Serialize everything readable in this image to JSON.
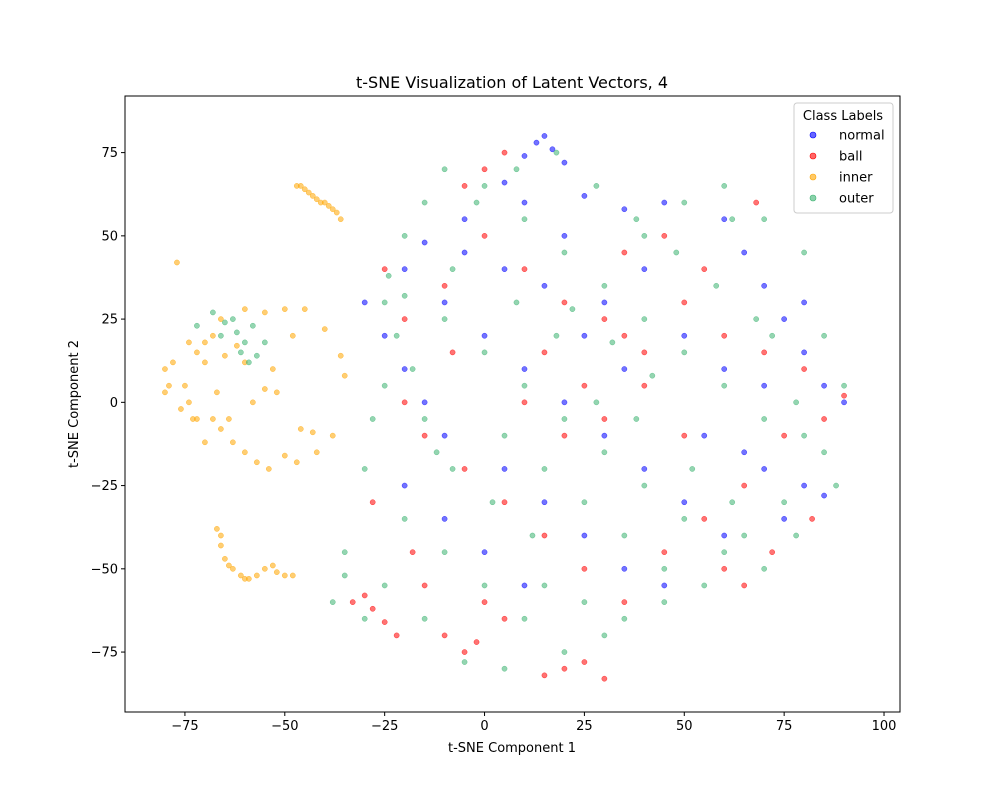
{
  "chart_data": {
    "type": "scatter",
    "title": "t-SNE Visualization of Latent Vectors, 4",
    "xlabel": "t-SNE Component 1",
    "ylabel": "t-SNE Component 2",
    "xlim": [
      -90,
      104
    ],
    "ylim": [
      -93,
      92
    ],
    "xticks": [
      -75,
      -50,
      -25,
      0,
      25,
      50,
      75,
      100
    ],
    "yticks": [
      -75,
      -50,
      -25,
      0,
      25,
      50,
      75
    ],
    "grid": false,
    "legend": {
      "title": "Class Labels",
      "placement": "top-right",
      "entries": [
        "normal",
        "ball",
        "inner",
        "outer"
      ]
    },
    "colors": {
      "normal": "#0000ff",
      "ball": "#ff0000",
      "inner": "#ffa500",
      "outer": "#3cb371"
    },
    "series": [
      {
        "name": "normal",
        "points": [
          [
            15,
            80
          ],
          [
            13,
            78
          ],
          [
            17,
            76
          ],
          [
            10,
            74
          ],
          [
            20,
            72
          ],
          [
            5,
            66
          ],
          [
            25,
            62
          ],
          [
            35,
            58
          ],
          [
            -5,
            55
          ],
          [
            -15,
            48
          ],
          [
            -20,
            40
          ],
          [
            60,
            55
          ],
          [
            65,
            45
          ],
          [
            70,
            35
          ],
          [
            75,
            25
          ],
          [
            80,
            15
          ],
          [
            85,
            5
          ],
          [
            90,
            0
          ],
          [
            -10,
            30
          ],
          [
            0,
            20
          ],
          [
            10,
            10
          ],
          [
            20,
            0
          ],
          [
            30,
            -10
          ],
          [
            40,
            -20
          ],
          [
            50,
            -30
          ],
          [
            60,
            -40
          ],
          [
            70,
            -20
          ],
          [
            80,
            -25
          ],
          [
            85,
            -28
          ],
          [
            75,
            -35
          ],
          [
            -25,
            20
          ],
          [
            -20,
            10
          ],
          [
            -15,
            0
          ],
          [
            -10,
            -10
          ],
          [
            5,
            -20
          ],
          [
            15,
            -30
          ],
          [
            25,
            -40
          ],
          [
            35,
            -50
          ],
          [
            45,
            -55
          ],
          [
            10,
            -55
          ],
          [
            0,
            -45
          ],
          [
            -10,
            -35
          ],
          [
            -20,
            -25
          ],
          [
            30,
            30
          ],
          [
            40,
            40
          ],
          [
            50,
            20
          ],
          [
            20,
            50
          ],
          [
            10,
            60
          ],
          [
            -5,
            45
          ],
          [
            45,
            60
          ],
          [
            55,
            -10
          ],
          [
            65,
            -15
          ],
          [
            35,
            10
          ],
          [
            25,
            20
          ],
          [
            15,
            35
          ],
          [
            5,
            40
          ],
          [
            -30,
            30
          ],
          [
            60,
            10
          ],
          [
            70,
            5
          ],
          [
            80,
            30
          ]
        ]
      },
      {
        "name": "ball",
        "points": [
          [
            -30,
            -58
          ],
          [
            -28,
            -62
          ],
          [
            -25,
            -66
          ],
          [
            -33,
            -60
          ],
          [
            -22,
            -70
          ],
          [
            -5,
            -75
          ],
          [
            -10,
            -70
          ],
          [
            -2,
            -72
          ],
          [
            15,
            -82
          ],
          [
            20,
            -80
          ],
          [
            25,
            -78
          ],
          [
            30,
            -83
          ],
          [
            0,
            -60
          ],
          [
            5,
            -65
          ],
          [
            -15,
            -55
          ],
          [
            30,
            25
          ],
          [
            35,
            20
          ],
          [
            40,
            15
          ],
          [
            20,
            30
          ],
          [
            10,
            40
          ],
          [
            -10,
            35
          ],
          [
            -20,
            25
          ],
          [
            -25,
            40
          ],
          [
            0,
            50
          ],
          [
            50,
            30
          ],
          [
            60,
            20
          ],
          [
            70,
            15
          ],
          [
            80,
            10
          ],
          [
            85,
            -5
          ],
          [
            75,
            -10
          ],
          [
            65,
            -25
          ],
          [
            55,
            -35
          ],
          [
            45,
            -45
          ],
          [
            35,
            -60
          ],
          [
            25,
            -50
          ],
          [
            15,
            -40
          ],
          [
            5,
            -30
          ],
          [
            -5,
            -20
          ],
          [
            -15,
            -10
          ],
          [
            -20,
            0
          ],
          [
            10,
            0
          ],
          [
            20,
            -10
          ],
          [
            30,
            -5
          ],
          [
            40,
            5
          ],
          [
            50,
            -10
          ],
          [
            60,
            -50
          ],
          [
            65,
            -55
          ],
          [
            72,
            -45
          ],
          [
            -28,
            -30
          ],
          [
            -18,
            -45
          ],
          [
            5,
            75
          ],
          [
            0,
            70
          ],
          [
            -5,
            65
          ],
          [
            35,
            45
          ],
          [
            45,
            50
          ],
          [
            55,
            40
          ],
          [
            68,
            60
          ],
          [
            25,
            5
          ],
          [
            15,
            15
          ],
          [
            -8,
            15
          ],
          [
            90,
            2
          ],
          [
            82,
            -35
          ]
        ]
      },
      {
        "name": "inner",
        "points": [
          [
            -47,
            65
          ],
          [
            -45,
            64
          ],
          [
            -43,
            62
          ],
          [
            -41,
            60
          ],
          [
            -39,
            59
          ],
          [
            -37,
            57
          ],
          [
            -36,
            55
          ],
          [
            -44,
            63
          ],
          [
            -42,
            61
          ],
          [
            -38,
            58
          ],
          [
            -46,
            65
          ],
          [
            -40,
            60
          ],
          [
            -67,
            -38
          ],
          [
            -66,
            -43
          ],
          [
            -65,
            -47
          ],
          [
            -63,
            -50
          ],
          [
            -61,
            -52
          ],
          [
            -59,
            -53
          ],
          [
            -57,
            -52
          ],
          [
            -66,
            -40
          ],
          [
            -64,
            -49
          ],
          [
            -60,
            -53
          ],
          [
            -55,
            -50
          ],
          [
            -52,
            -51
          ],
          [
            -50,
            -52
          ],
          [
            -48,
            -52
          ],
          [
            -53,
            -49
          ],
          [
            -77,
            42
          ],
          [
            -72,
            15
          ],
          [
            -70,
            18
          ],
          [
            -68,
            20
          ],
          [
            -66,
            25
          ],
          [
            -60,
            28
          ],
          [
            -55,
            27
          ],
          [
            -50,
            28
          ],
          [
            -45,
            28
          ],
          [
            -40,
            22
          ],
          [
            -36,
            14
          ],
          [
            -35,
            8
          ],
          [
            -38,
            -10
          ],
          [
            -42,
            -15
          ],
          [
            -47,
            -18
          ],
          [
            -50,
            -16
          ],
          [
            -54,
            -20
          ],
          [
            -57,
            -18
          ],
          [
            -60,
            -15
          ],
          [
            -63,
            -12
          ],
          [
            -66,
            -8
          ],
          [
            -68,
            -5
          ],
          [
            -70,
            -12
          ],
          [
            -72,
            -5
          ],
          [
            -74,
            0
          ],
          [
            -75,
            5
          ],
          [
            -78,
            12
          ],
          [
            -79,
            5
          ],
          [
            -80,
            10
          ],
          [
            -80,
            3
          ],
          [
            -76,
            -2
          ],
          [
            -73,
            -5
          ],
          [
            -67,
            3
          ],
          [
            -64,
            -5
          ],
          [
            -62,
            17
          ],
          [
            -58,
            0
          ],
          [
            -55,
            4
          ],
          [
            -52,
            3
          ],
          [
            -46,
            -8
          ],
          [
            -43,
            -9
          ],
          [
            -60,
            12
          ],
          [
            -65,
            14
          ],
          [
            -70,
            12
          ],
          [
            -74,
            18
          ],
          [
            -48,
            20
          ],
          [
            -53,
            10
          ]
        ]
      },
      {
        "name": "outer",
        "points": [
          [
            -65,
            24
          ],
          [
            -62,
            21
          ],
          [
            -60,
            18
          ],
          [
            -58,
            23
          ],
          [
            -63,
            25
          ],
          [
            -66,
            20
          ],
          [
            -61,
            15
          ],
          [
            -59,
            12
          ],
          [
            -57,
            14
          ],
          [
            -68,
            27
          ],
          [
            -72,
            23
          ],
          [
            -55,
            18
          ],
          [
            -24,
            38
          ],
          [
            -20,
            32
          ],
          [
            -10,
            25
          ],
          [
            0,
            15
          ],
          [
            10,
            5
          ],
          [
            20,
            -5
          ],
          [
            30,
            -15
          ],
          [
            40,
            -25
          ],
          [
            50,
            -35
          ],
          [
            60,
            -45
          ],
          [
            70,
            -50
          ],
          [
            -30,
            -20
          ],
          [
            -20,
            -35
          ],
          [
            -10,
            -45
          ],
          [
            0,
            -55
          ],
          [
            10,
            -65
          ],
          [
            20,
            -75
          ],
          [
            30,
            -70
          ],
          [
            -35,
            -45
          ],
          [
            -25,
            -55
          ],
          [
            -15,
            -65
          ],
          [
            -5,
            -78
          ],
          [
            5,
            -80
          ],
          [
            40,
            50
          ],
          [
            50,
            60
          ],
          [
            60,
            65
          ],
          [
            70,
            55
          ],
          [
            80,
            45
          ],
          [
            85,
            20
          ],
          [
            90,
            5
          ],
          [
            80,
            -10
          ],
          [
            70,
            -5
          ],
          [
            60,
            5
          ],
          [
            50,
            15
          ],
          [
            40,
            25
          ],
          [
            30,
            35
          ],
          [
            20,
            45
          ],
          [
            10,
            55
          ],
          [
            0,
            65
          ],
          [
            -10,
            70
          ],
          [
            -15,
            60
          ],
          [
            -20,
            50
          ],
          [
            -25,
            30
          ],
          [
            -22,
            20
          ],
          [
            -18,
            10
          ],
          [
            -15,
            -5
          ],
          [
            -12,
            -15
          ],
          [
            5,
            -10
          ],
          [
            15,
            -20
          ],
          [
            25,
            -30
          ],
          [
            35,
            -40
          ],
          [
            45,
            -50
          ],
          [
            55,
            -55
          ],
          [
            65,
            -40
          ],
          [
            75,
            -30
          ],
          [
            85,
            -15
          ],
          [
            78,
            0
          ],
          [
            68,
            25
          ],
          [
            58,
            35
          ],
          [
            48,
            45
          ],
          [
            38,
            55
          ],
          [
            28,
            65
          ],
          [
            18,
            75
          ],
          [
            8,
            70
          ],
          [
            -2,
            60
          ],
          [
            28,
            0
          ],
          [
            38,
            -5
          ],
          [
            18,
            20
          ],
          [
            8,
            30
          ],
          [
            -8,
            40
          ],
          [
            52,
            -20
          ],
          [
            62,
            -30
          ],
          [
            42,
            8
          ],
          [
            32,
            18
          ],
          [
            22,
            28
          ],
          [
            12,
            -40
          ],
          [
            2,
            -30
          ],
          [
            -8,
            -20
          ],
          [
            -28,
            -5
          ],
          [
            -25,
            5
          ],
          [
            88,
            -25
          ],
          [
            78,
            -40
          ],
          [
            72,
            20
          ],
          [
            62,
            55
          ],
          [
            45,
            -60
          ],
          [
            35,
            -65
          ],
          [
            25,
            -60
          ],
          [
            15,
            -55
          ],
          [
            -38,
            -60
          ],
          [
            -30,
            -65
          ],
          [
            -35,
            -52
          ]
        ]
      }
    ]
  }
}
